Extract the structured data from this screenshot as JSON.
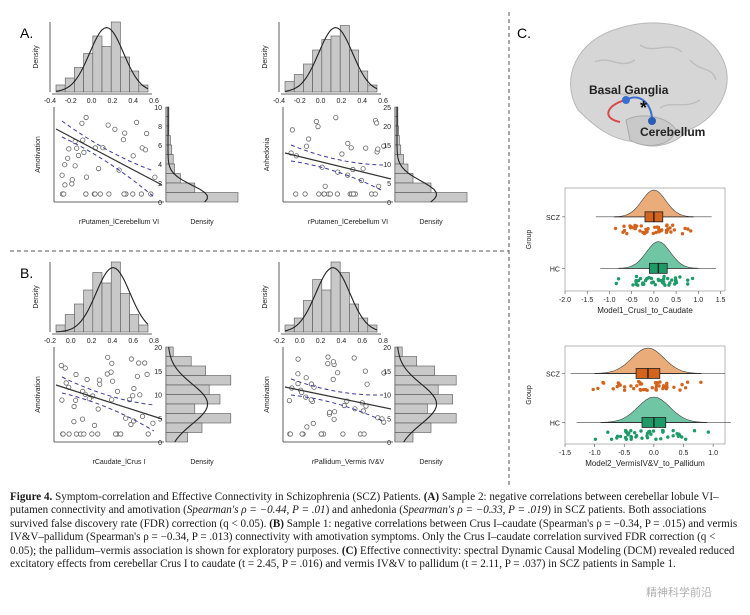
{
  "panels": {
    "A": {
      "label": "A.",
      "left_xlabel": "rPutamen_lCerebellum VI",
      "right_xlabel": "rPutamen_lCerebellum VI",
      "left_ylabel": "Amotivation",
      "right_ylabel": "Anhedonia",
      "density_label": "Density",
      "hist_ticks": [
        "-0.4",
        "-0.2",
        "0.0",
        "0.2",
        "0.4",
        "0.6"
      ],
      "left_yticks": [
        "10",
        "8",
        "6",
        "4",
        "2",
        "0"
      ],
      "right_yticks": [
        "25",
        "20",
        "15",
        "10",
        "5",
        "0"
      ]
    },
    "B": {
      "label": "B.",
      "left_xlabel": "rCaudate_lCrus I",
      "right_xlabel": "rPallidum_Vermis IV&V",
      "left_ylabel": "Amotivation",
      "right_ylabel": "Amotivation",
      "density_label": "Density",
      "left_hist_ticks": [
        "-0.2",
        "0.0",
        "0.2",
        "0.4",
        "0.6",
        "0.8"
      ],
      "right_hist_ticks": [
        "-0.2",
        "0.0",
        "0.2",
        "0.4",
        "0.6",
        "0.8"
      ],
      "yticks": [
        "20",
        "15",
        "10",
        "5",
        "0"
      ]
    },
    "C": {
      "label": "C.",
      "brain_label_1": "Basal Ganglia",
      "brain_label_2": "Cerebellum",
      "star": "*",
      "chart1_xlabel": "Model1_CrusI_to_Caudate",
      "chart2_xlabel": "Model2_VermisIV&V_to_Pallidum",
      "group_label": "Group"
    }
  },
  "chart_data": [
    {
      "type": "raincloud",
      "xlabel": "Model1_CrusI_to_Caudate",
      "ylabel": "Group",
      "groups": [
        "SCZ",
        "HC"
      ],
      "xticks": [
        "-2.0",
        "-1.5",
        "-1.0",
        "-0.5",
        "0.0",
        "0.5",
        "1.0",
        "1.5"
      ],
      "xlim": [
        -2.0,
        1.6
      ],
      "colors": {
        "SCZ": "#e8a46a",
        "HC": "#5fbf9a"
      },
      "point_colors": {
        "SCZ": "#d2641e",
        "HC": "#1e9a68"
      },
      "medians": {
        "SCZ": 0.0,
        "HC": 0.1
      }
    },
    {
      "type": "raincloud",
      "xlabel": "Model2_VermisIV&V_to_Pallidum",
      "ylabel": "Group",
      "groups": [
        "SCZ",
        "HC"
      ],
      "xticks": [
        "-1.5",
        "-1.0",
        "-0.5",
        "0.0",
        "0.5",
        "1.0"
      ],
      "xlim": [
        -1.5,
        1.2
      ],
      "colors": {
        "SCZ": "#e8a46a",
        "HC": "#5fbf9a"
      },
      "point_colors": {
        "SCZ": "#d2641e",
        "HC": "#1e9a68"
      },
      "medians": {
        "SCZ": -0.1,
        "HC": 0.0
      }
    }
  ],
  "caption": {
    "figure_label": "Figure 4.",
    "title": "Symptom-correlation and Effective Connectivity in Schizophrenia (SCZ) Patients.",
    "a_tag": "(A)",
    "a_text": "Sample 2: negative correlations between cerebellar lobule VI–putamen connectivity and amotivation (",
    "a_stat1": "Spearman's ρ = −0.44, P = .01",
    "a_text2": ") and anhedonia (",
    "a_stat2": "Spearman's ρ = −0.33, P = .019",
    "a_text3": ") in SCZ patients. Both associations survived false discovery rate (FDR) correction (q < 0.05).",
    "b_tag": "(B)",
    "b_text": "Sample 1: negative correlations between Crus I–caudate (Spearman's ρ = −0.34, P = .015) and vermis IV&V–pallidum (Spearman's ρ = −0.34, P = .013) connectivity with amotivation symptoms. Only the Crus I–caudate correlation survived FDR correction (q < 0.05); the pallidum–vermis association is shown for exploratory purposes.",
    "c_tag": "(C)",
    "c_text": "Effective connectivity: spectral Dynamic Causal Modeling (DCM) revealed reduced excitatory effects from cerebellar Crus I to caudate (t = 2.45, P = .016) and vermis IV&V to pallidum (t = 2.11, P = .037) in SCZ patients in Sample 1."
  },
  "watermark": "精神科学前沿"
}
